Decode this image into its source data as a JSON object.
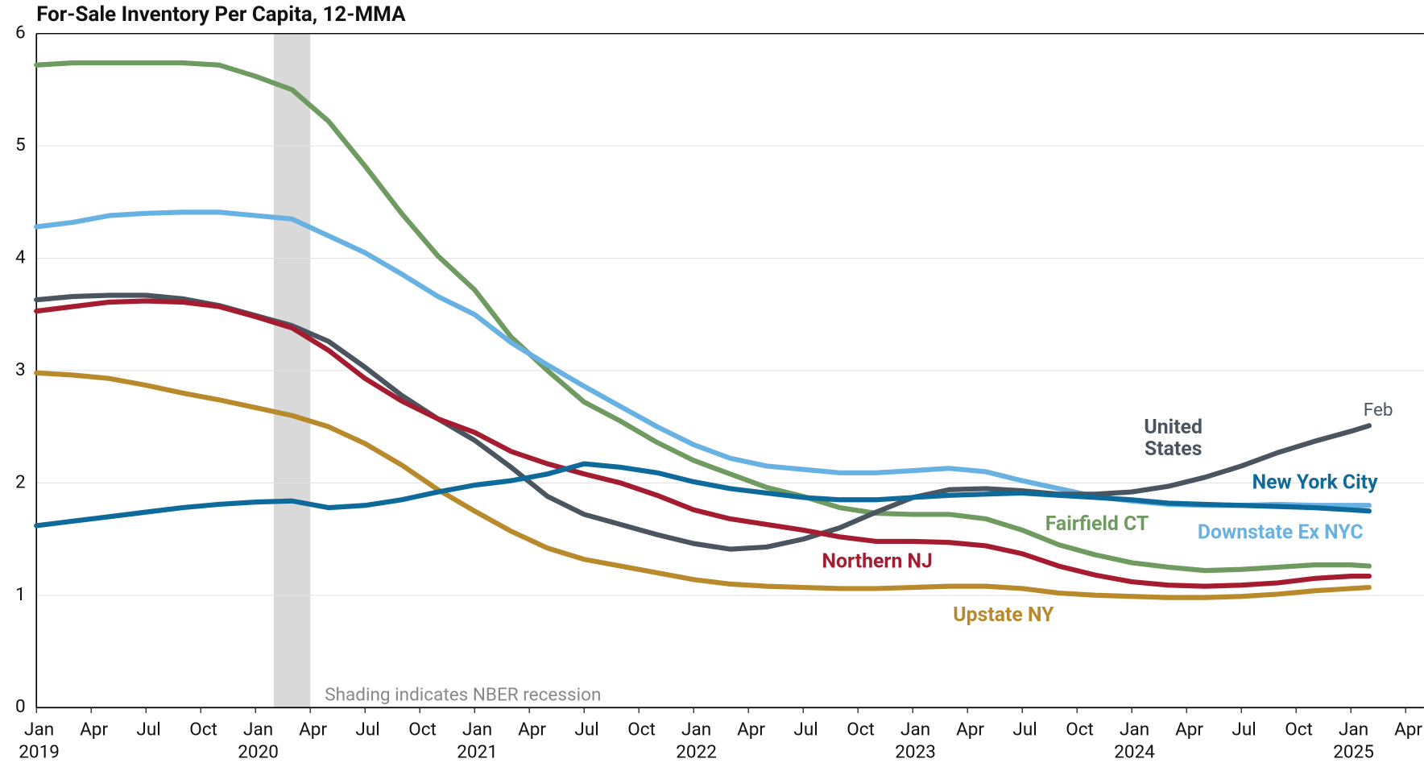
{
  "chart_data": {
    "type": "line",
    "title": "For-Sale Inventory Per Capita, 12-MMA",
    "x": [
      "2019-01",
      "2019-03",
      "2019-05",
      "2019-07",
      "2019-09",
      "2019-11",
      "2020-01",
      "2020-03",
      "2020-05",
      "2020-07",
      "2020-09",
      "2020-11",
      "2021-01",
      "2021-03",
      "2021-05",
      "2021-07",
      "2021-09",
      "2021-11",
      "2022-01",
      "2022-03",
      "2022-05",
      "2022-07",
      "2022-09",
      "2022-11",
      "2023-01",
      "2023-03",
      "2023-05",
      "2023-07",
      "2023-09",
      "2023-11",
      "2024-01",
      "2024-03",
      "2024-05",
      "2024-07",
      "2024-09",
      "2024-11",
      "2025-01",
      "2025-02"
    ],
    "series": [
      {
        "name": "Fairfield CT",
        "color": "#6f9a60",
        "values": [
          5.72,
          5.74,
          5.74,
          5.74,
          5.74,
          5.72,
          5.62,
          5.5,
          5.22,
          4.82,
          4.4,
          4.02,
          3.72,
          3.3,
          3.0,
          2.72,
          2.55,
          2.36,
          2.2,
          2.08,
          1.96,
          1.88,
          1.78,
          1.73,
          1.72,
          1.72,
          1.68,
          1.58,
          1.45,
          1.36,
          1.29,
          1.25,
          1.22,
          1.23,
          1.25,
          1.27,
          1.27,
          1.26
        ]
      },
      {
        "name": "Downstate Ex NYC",
        "color": "#68b1e3",
        "values": [
          4.28,
          4.32,
          4.38,
          4.4,
          4.41,
          4.41,
          4.38,
          4.35,
          4.2,
          4.05,
          3.86,
          3.66,
          3.5,
          3.25,
          3.05,
          2.86,
          2.68,
          2.5,
          2.34,
          2.22,
          2.15,
          2.12,
          2.09,
          2.09,
          2.11,
          2.13,
          2.1,
          2.02,
          1.95,
          1.88,
          1.84,
          1.81,
          1.8,
          1.8,
          1.81,
          1.8,
          1.8,
          1.8
        ]
      },
      {
        "name": "United States",
        "color": "#4a5560",
        "values": [
          3.63,
          3.66,
          3.67,
          3.67,
          3.64,
          3.58,
          3.49,
          3.4,
          3.26,
          3.03,
          2.78,
          2.57,
          2.38,
          2.14,
          1.88,
          1.72,
          1.63,
          1.54,
          1.46,
          1.41,
          1.43,
          1.5,
          1.6,
          1.74,
          1.87,
          1.94,
          1.95,
          1.93,
          1.9,
          1.9,
          1.92,
          1.97,
          2.05,
          2.15,
          2.27,
          2.37,
          2.46,
          2.51
        ]
      },
      {
        "name": "Northern NJ",
        "color": "#a51c30",
        "values": [
          3.53,
          3.57,
          3.61,
          3.62,
          3.61,
          3.57,
          3.48,
          3.38,
          3.18,
          2.93,
          2.73,
          2.57,
          2.45,
          2.28,
          2.17,
          2.08,
          2.0,
          1.89,
          1.76,
          1.68,
          1.63,
          1.58,
          1.52,
          1.48,
          1.48,
          1.47,
          1.44,
          1.37,
          1.26,
          1.18,
          1.12,
          1.09,
          1.08,
          1.09,
          1.11,
          1.15,
          1.17,
          1.17
        ]
      },
      {
        "name": "Upstate NY",
        "color": "#b98a2b",
        "values": [
          2.98,
          2.96,
          2.93,
          2.87,
          2.8,
          2.74,
          2.67,
          2.6,
          2.5,
          2.35,
          2.16,
          1.94,
          1.75,
          1.57,
          1.42,
          1.32,
          1.26,
          1.2,
          1.14,
          1.1,
          1.08,
          1.07,
          1.06,
          1.06,
          1.07,
          1.08,
          1.08,
          1.06,
          1.02,
          1.0,
          0.99,
          0.98,
          0.98,
          0.99,
          1.01,
          1.04,
          1.06,
          1.07
        ]
      },
      {
        "name": "New York City",
        "color": "#0d6a9a",
        "values": [
          1.62,
          1.66,
          1.7,
          1.74,
          1.78,
          1.81,
          1.83,
          1.84,
          1.78,
          1.8,
          1.85,
          1.92,
          1.98,
          2.02,
          2.08,
          2.17,
          2.14,
          2.09,
          2.01,
          1.95,
          1.91,
          1.87,
          1.85,
          1.85,
          1.87,
          1.89,
          1.9,
          1.91,
          1.89,
          1.87,
          1.85,
          1.82,
          1.81,
          1.8,
          1.79,
          1.78,
          1.76,
          1.75
        ]
      }
    ],
    "xlim": [
      "2019-01",
      "2025-05"
    ],
    "xticks": [
      {
        "value": "2019-01",
        "label": "Jan"
      },
      {
        "value": "2019-04",
        "label": "Apr"
      },
      {
        "value": "2019-07",
        "label": "Jul"
      },
      {
        "value": "2019-10",
        "label": "Oct"
      },
      {
        "value": "2020-01",
        "label": "Jan"
      },
      {
        "value": "2020-04",
        "label": "Apr"
      },
      {
        "value": "2020-07",
        "label": "Jul"
      },
      {
        "value": "2020-10",
        "label": "Oct"
      },
      {
        "value": "2021-01",
        "label": "Jan"
      },
      {
        "value": "2021-04",
        "label": "Apr"
      },
      {
        "value": "2021-07",
        "label": "Jul"
      },
      {
        "value": "2021-10",
        "label": "Oct"
      },
      {
        "value": "2022-01",
        "label": "Jan"
      },
      {
        "value": "2022-04",
        "label": "Apr"
      },
      {
        "value": "2022-07",
        "label": "Jul"
      },
      {
        "value": "2022-10",
        "label": "Oct"
      },
      {
        "value": "2023-01",
        "label": "Jan"
      },
      {
        "value": "2023-04",
        "label": "Apr"
      },
      {
        "value": "2023-07",
        "label": "Jul"
      },
      {
        "value": "2023-10",
        "label": "Oct"
      },
      {
        "value": "2024-01",
        "label": "Jan"
      },
      {
        "value": "2024-04",
        "label": "Apr"
      },
      {
        "value": "2024-07",
        "label": "Jul"
      },
      {
        "value": "2024-10",
        "label": "Oct"
      },
      {
        "value": "2025-01",
        "label": "Jan"
      },
      {
        "value": "2025-04",
        "label": "Apr"
      }
    ],
    "xtick_years": [
      {
        "value": "2019-01",
        "label": "2019"
      },
      {
        "value": "2020-01",
        "label": "2020"
      },
      {
        "value": "2021-01",
        "label": "2021"
      },
      {
        "value": "2022-01",
        "label": "2022"
      },
      {
        "value": "2023-01",
        "label": "2023"
      },
      {
        "value": "2024-01",
        "label": "2024"
      },
      {
        "value": "2025-01",
        "label": "2025"
      }
    ],
    "ylim": [
      0,
      6
    ],
    "yticks": [
      0,
      1,
      2,
      3,
      4,
      5,
      6
    ],
    "grid": true,
    "recession": {
      "start": "2020-02",
      "end": "2020-04",
      "color": "#d9d9d9",
      "label": "Shading indicates NBER recession"
    },
    "end_annotation": "Feb"
  }
}
